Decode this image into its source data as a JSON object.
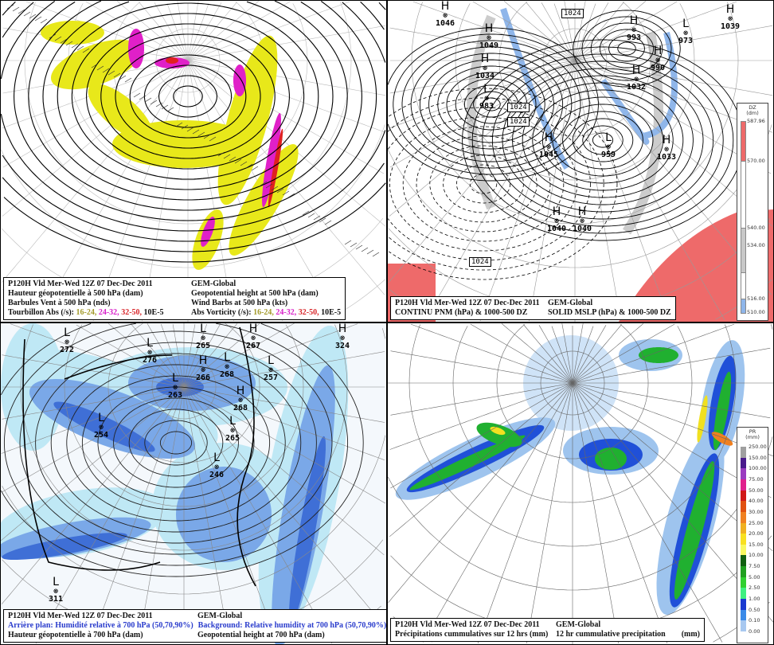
{
  "panels": [
    {
      "id": "p1",
      "caption": {
        "run": "P120H Vld Mer-Wed 12Z 07 Dec-Dec 2011",
        "model": "GEM-Global",
        "fr_line1": "Hauteur géopotentielle à 500 hPa (dam)",
        "en_line1": "Geopotential height at 500 hPa (dam)",
        "fr_line2": "Barbules Vent à 500 hPa (nds)",
        "en_line2": "Wind Barbs at 500 hPa  (kts)",
        "fr_line3": "Tourbillon Abs (/s):",
        "en_line3": "Abs Vorticity (/s):",
        "ranges": [
          "16-24,",
          "24-32,",
          "32-50,"
        ],
        "unit": "10E-5"
      },
      "colors": {
        "range1": "#e8e81a",
        "range2": "#e020c8",
        "range3": "#e02020"
      }
    },
    {
      "id": "p2",
      "caption": {
        "run": "P120H Vld Mer-Wed 12Z 07 Dec-Dec 2011",
        "model": "GEM-Global",
        "fr_line1": "CONTINU PNM  (hPa) & 1000-500 DZ",
        "en_line1": "SOLID  MSLP (hPa) & 1000-500 DZ"
      },
      "centers": [
        {
          "type": "H",
          "value": "1046"
        },
        {
          "type": "H",
          "value": "1049"
        },
        {
          "type": "H",
          "value": "1034"
        },
        {
          "type": "L",
          "value": "983"
        },
        {
          "type": "H",
          "value": "993"
        },
        {
          "type": "H",
          "value": "990"
        },
        {
          "type": "L",
          "value": "973"
        },
        {
          "type": "H",
          "value": "1032"
        },
        {
          "type": "H",
          "value": "1039"
        },
        {
          "type": "L",
          "value": "959"
        },
        {
          "type": "H",
          "value": "1033"
        },
        {
          "type": "H",
          "value": "1045"
        },
        {
          "type": "H",
          "value": "1040"
        },
        {
          "type": "H",
          "value": "1040"
        }
      ],
      "box_labels": [
        "1024",
        "1024",
        "1024",
        "1024"
      ],
      "legend": {
        "title": "DZ",
        "unit": "(dm)",
        "ticks": [
          "587.96",
          "570.00",
          "540.00",
          "534.00",
          "516.00",
          "510.00"
        ],
        "colors": [
          "#ee6a6a",
          "#ffffff",
          "#c8c8c8",
          "#ffffff",
          "#8fb6ea"
        ]
      }
    },
    {
      "id": "p3",
      "caption": {
        "run": "P120H Vld Mer-Wed 12Z 07 Dec-Dec 2011",
        "model": "GEM-Global",
        "fr_line1": "Arrière plan: Humidité relative à 700 hPa (50,70,90%)",
        "en_line1": "Background: Relative humidity at 700 hPa (50,70,90%)",
        "fr_line2": "Hauteur géopotentielle à 700 hPa (dam)",
        "en_line2": "Geopotential height at 700 hPa (dam)"
      },
      "centers": [
        {
          "type": "L",
          "value": "272"
        },
        {
          "type": "L",
          "value": "276"
        },
        {
          "type": "L",
          "value": "265"
        },
        {
          "type": "L",
          "value": "268"
        },
        {
          "type": "H",
          "value": "266"
        },
        {
          "type": "H",
          "value": "267"
        },
        {
          "type": "L",
          "value": "257"
        },
        {
          "type": "L",
          "value": "263"
        },
        {
          "type": "H",
          "value": "268"
        },
        {
          "type": "L",
          "value": "265"
        },
        {
          "type": "L",
          "value": "254"
        },
        {
          "type": "L",
          "value": "246"
        },
        {
          "type": "H",
          "value": "324"
        },
        {
          "type": "L",
          "value": "311"
        }
      ],
      "colors": {
        "rh50": "#bfe8f5",
        "rh70": "#7aa8e8",
        "rh90": "#3f6fd6"
      }
    },
    {
      "id": "p4",
      "caption": {
        "run": "P120H Vld Mer-Wed 12Z 07 Dec-Dec 2011",
        "model": "GEM-Global",
        "fr_line1": "Précipitations cummulatives sur 12 hrs (mm)",
        "en_line1": "12 hr cummulative precipitation",
        "unit": "(mm)"
      },
      "legend": {
        "title": "PR",
        "unit": "(mm)",
        "ticks": [
          "250.00",
          "150.00",
          "100.00",
          "75.00",
          "50.00",
          "40.00",
          "30.00",
          "25.00",
          "20.00",
          "15.00",
          "10.00",
          "7.50",
          "5.00",
          "2.50",
          "1.00",
          "0.50",
          "0.10",
          "0.00"
        ],
        "colors": [
          "#a0a0a0",
          "#4a1a8c",
          "#9a3cc0",
          "#e0208c",
          "#d01818",
          "#e05010",
          "#f08020",
          "#f0b020",
          "#f8e020",
          "#f8f860",
          "#106010",
          "#20a020",
          "#30d030",
          "#40f080",
          "#1a3ad0",
          "#3a8ae8",
          "#a8c8f0",
          "#ffffff"
        ]
      }
    }
  ]
}
